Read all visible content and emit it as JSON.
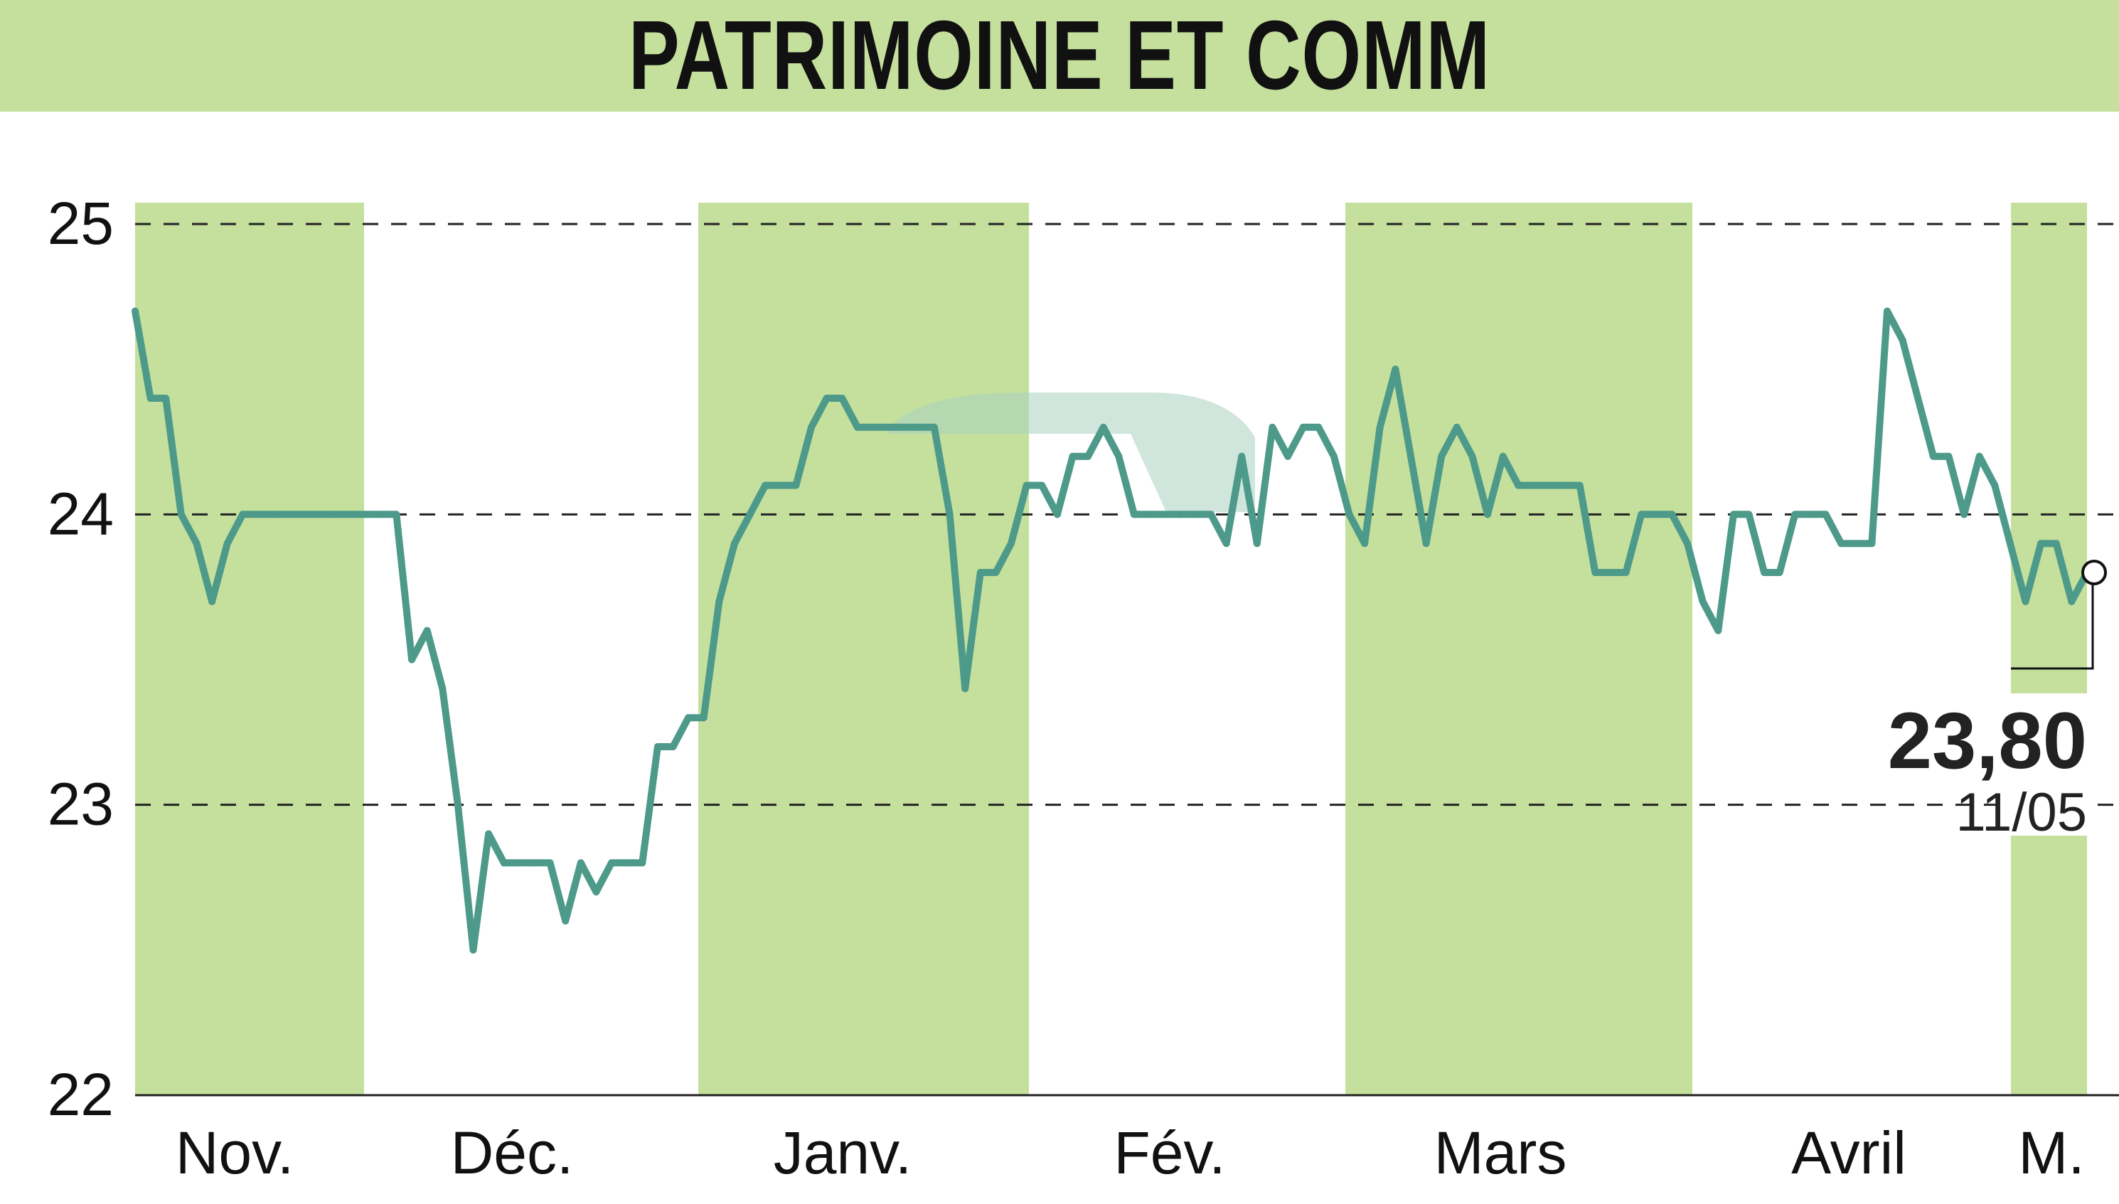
{
  "title": "PATRIMOINE ET COMM",
  "colors": {
    "title_bg": "#c5e09d",
    "month_band": "#c5e09d",
    "line": "#4d9a8a",
    "grid": "#222222",
    "text": "#111111"
  },
  "chart_data": {
    "type": "line",
    "title": "PATRIMOINE ET COMM",
    "xlabel": "",
    "ylabel": "",
    "ylim": [
      22,
      25
    ],
    "yticks": [
      22,
      23,
      24,
      25
    ],
    "ytick_labels": [
      "22",
      "23",
      "24",
      "25"
    ],
    "grid": "horizontal dashed",
    "months": [
      {
        "label": "Nov.",
        "shaded": true
      },
      {
        "label": "Déc.",
        "shaded": false
      },
      {
        "label": "Janv.",
        "shaded": true
      },
      {
        "label": "Fév.",
        "shaded": false
      },
      {
        "label": "Mars",
        "shaded": true
      },
      {
        "label": "Avril",
        "shaded": false
      },
      {
        "label": "M.",
        "shaded": true
      }
    ],
    "values": [
      24.7,
      24.4,
      24.4,
      24.0,
      23.9,
      23.7,
      23.9,
      24.0,
      24.0,
      24.0,
      24.0,
      24.0,
      24.0,
      24.0,
      24.0,
      24.0,
      24.0,
      24.0,
      23.5,
      23.6,
      23.4,
      23.0,
      22.5,
      22.9,
      22.8,
      22.8,
      22.8,
      22.8,
      22.6,
      22.8,
      22.7,
      22.8,
      22.8,
      22.8,
      23.2,
      23.2,
      23.3,
      23.3,
      23.7,
      23.9,
      24.0,
      24.1,
      24.1,
      24.1,
      24.3,
      24.4,
      24.4,
      24.3,
      24.3,
      24.3,
      24.3,
      24.3,
      24.3,
      24.0,
      23.4,
      23.8,
      23.8,
      23.9,
      24.1,
      24.1,
      24.0,
      24.2,
      24.2,
      24.3,
      24.2,
      24.0,
      24.0,
      24.0,
      24.0,
      24.0,
      24.0,
      23.9,
      24.2,
      23.9,
      24.3,
      24.2,
      24.3,
      24.3,
      24.2,
      24.0,
      23.9,
      24.3,
      24.5,
      24.2,
      23.9,
      24.2,
      24.3,
      24.2,
      24.0,
      24.2,
      24.1,
      24.1,
      24.1,
      24.1,
      24.1,
      23.8,
      23.8,
      23.8,
      24.0,
      24.0,
      24.0,
      23.9,
      23.7,
      23.6,
      24.0,
      24.0,
      23.8,
      23.8,
      24.0,
      24.0,
      24.0,
      23.9,
      23.9,
      23.9,
      24.7,
      24.6,
      24.4,
      24.2,
      24.2,
      24.0,
      24.2,
      24.1,
      23.9,
      23.7,
      23.9,
      23.9,
      23.7,
      23.8
    ],
    "last_value": "23,80",
    "last_date": "11/05"
  }
}
